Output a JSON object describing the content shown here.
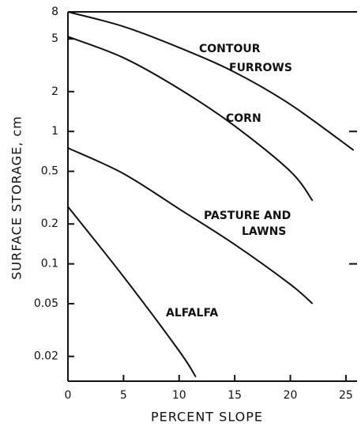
{
  "chart_data": {
    "type": "line",
    "xlabel": "PERCENT SLOPE",
    "ylabel": "SURFACE STORAGE, cm",
    "log_y": true,
    "xlim": [
      0,
      26
    ],
    "xticks": [
      0,
      5,
      10,
      15,
      20,
      25
    ],
    "ylim": [
      0.013,
      8
    ],
    "yticks": [
      8,
      5,
      2,
      1,
      0.5,
      0.2,
      0.1,
      0.05,
      0.02
    ],
    "series": [
      {
        "name": "CONTOUR FURROWS",
        "color": "#111111",
        "x": [
          0,
          5,
          10,
          15,
          20,
          25.7
        ],
        "values": [
          8,
          6.2,
          4.3,
          2.8,
          1.6,
          0.72
        ]
      },
      {
        "name": "CORN",
        "color": "#111111",
        "x": [
          0,
          5,
          10,
          15,
          20,
          22
        ],
        "values": [
          5.2,
          3.6,
          2.1,
          1.1,
          0.5,
          0.3
        ]
      },
      {
        "name": "PASTURE AND LAWNS",
        "color": "#111111",
        "x": [
          0,
          5,
          10,
          15,
          20,
          22
        ],
        "values": [
          0.75,
          0.48,
          0.26,
          0.14,
          0.07,
          0.05
        ]
      },
      {
        "name": "ALFALFA",
        "color": "#111111",
        "x": [
          0,
          5,
          10,
          11.5
        ],
        "values": [
          0.27,
          0.08,
          0.022,
          0.014
        ]
      }
    ],
    "annotations": [
      "CONTOUR",
      "FURROWS",
      "CORN",
      "PASTURE AND",
      "LAWNS",
      "ALFALFA"
    ]
  }
}
